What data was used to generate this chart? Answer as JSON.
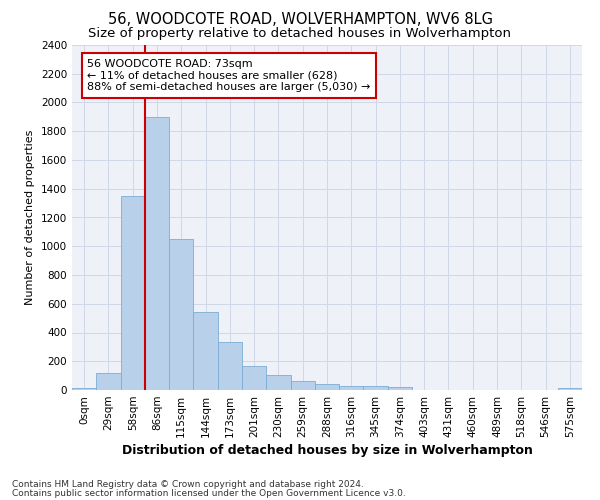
{
  "title1": "56, WOODCOTE ROAD, WOLVERHAMPTON, WV6 8LG",
  "title2": "Size of property relative to detached houses in Wolverhampton",
  "xlabel": "Distribution of detached houses by size in Wolverhampton",
  "ylabel": "Number of detached properties",
  "categories": [
    "0sqm",
    "29sqm",
    "58sqm",
    "86sqm",
    "115sqm",
    "144sqm",
    "173sqm",
    "201sqm",
    "230sqm",
    "259sqm",
    "288sqm",
    "316sqm",
    "345sqm",
    "374sqm",
    "403sqm",
    "431sqm",
    "460sqm",
    "489sqm",
    "518sqm",
    "546sqm",
    "575sqm"
  ],
  "values": [
    15,
    120,
    1350,
    1900,
    1050,
    540,
    335,
    170,
    105,
    60,
    40,
    30,
    25,
    20,
    0,
    0,
    0,
    0,
    0,
    0,
    15
  ],
  "bar_color": "#b8d0ea",
  "bar_edge_color": "#7aadd4",
  "bar_width": 1.0,
  "annotation_title": "56 WOODCOTE ROAD: 73sqm",
  "annotation_line1": "← 11% of detached houses are smaller (628)",
  "annotation_line2": "88% of semi-detached houses are larger (5,030) →",
  "annotation_box_color": "#ffffff",
  "annotation_box_edge": "#cc0000",
  "red_line_color": "#cc0000",
  "ylim": [
    0,
    2400
  ],
  "yticks": [
    0,
    200,
    400,
    600,
    800,
    1000,
    1200,
    1400,
    1600,
    1800,
    2000,
    2200,
    2400
  ],
  "grid_color": "#d0d8e8",
  "background_color": "#eef2f8",
  "footer1": "Contains HM Land Registry data © Crown copyright and database right 2024.",
  "footer2": "Contains public sector information licensed under the Open Government Licence v3.0.",
  "title1_fontsize": 10.5,
  "title2_fontsize": 9.5,
  "xlabel_fontsize": 9,
  "ylabel_fontsize": 8,
  "tick_fontsize": 7.5,
  "annotation_fontsize": 8,
  "footer_fontsize": 6.5
}
